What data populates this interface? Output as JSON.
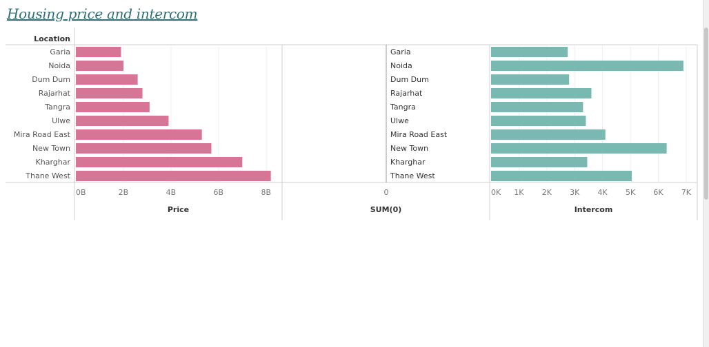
{
  "title": "Housing price and intercom",
  "chart_data": {
    "type": "bar",
    "orientation": "horizontal",
    "row_header": "Location",
    "categories": [
      "Garia",
      "Noida",
      "Dum Dum",
      "Rajarhat",
      "Tangra",
      "Ulwe",
      "Mira Road East",
      "New Town",
      "Kharghar",
      "Thane West"
    ],
    "series": [
      {
        "name": "Price",
        "values": [
          1.9,
          2.0,
          2.6,
          2.8,
          3.1,
          3.9,
          5.3,
          5.7,
          7.0,
          8.2
        ],
        "unit": "B",
        "xlim": [
          0,
          8.5
        ],
        "ticks": [
          0,
          2,
          4,
          6,
          8
        ],
        "tick_labels": [
          "0B",
          "2B",
          "4B",
          "6B",
          "8B"
        ],
        "xlabel": "Price",
        "color": "#d77597"
      },
      {
        "name": "SUM(0)",
        "values": [
          0,
          0,
          0,
          0,
          0,
          0,
          0,
          0,
          0,
          0
        ],
        "ticks": [
          0
        ],
        "tick_labels": [
          "0"
        ],
        "xlabel": "SUM(0)",
        "color": "#9a9a9a"
      },
      {
        "name": "Intercom",
        "values": [
          2750,
          6900,
          2800,
          3600,
          3300,
          3400,
          4100,
          6300,
          3450,
          5050
        ],
        "unit": "K",
        "xlim": [
          0,
          7200
        ],
        "ticks": [
          0,
          1000,
          2000,
          3000,
          4000,
          5000,
          6000,
          7000
        ],
        "tick_labels": [
          "0K",
          "1K",
          "2K",
          "3K",
          "4K",
          "5K",
          "6K",
          "7K"
        ],
        "xlabel": "Intercom",
        "color": "#7ab8b2"
      }
    ],
    "grid": true,
    "legend": "none"
  }
}
